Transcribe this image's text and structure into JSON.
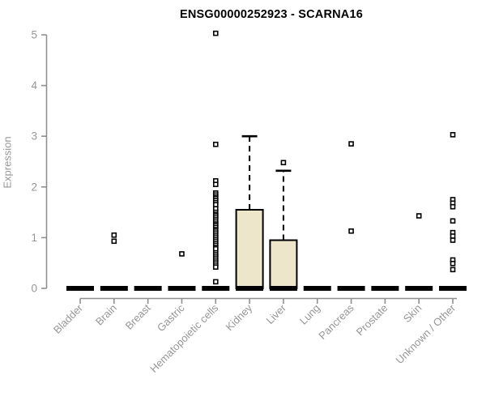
{
  "page": {
    "background": "#ffffff"
  },
  "chart_data": {
    "type": "boxplot",
    "title": "ENSG00000252923 - SCARNA16",
    "xlabel": "",
    "ylabel": "Expression",
    "ylim": [
      0,
      5
    ],
    "yticks": [
      0,
      1,
      2,
      3,
      4,
      5
    ],
    "grid": false,
    "legend": false,
    "categories": [
      "Bladder",
      "Brain",
      "Breast",
      "Gastric",
      "Hematopoietic cells",
      "Kidney",
      "Liver",
      "Lung",
      "Pancreas",
      "Prostate",
      "Skin",
      "Unknown / Other"
    ],
    "series": [
      {
        "category": "Bladder",
        "low": 0,
        "q1": 0,
        "median": 0,
        "q3": 0,
        "high": 0,
        "outliers": []
      },
      {
        "category": "Brain",
        "low": 0,
        "q1": 0,
        "median": 0,
        "q3": 0,
        "high": 0,
        "outliers": [
          1.05,
          0.93
        ]
      },
      {
        "category": "Breast",
        "low": 0,
        "q1": 0,
        "median": 0,
        "q3": 0,
        "high": 0,
        "outliers": []
      },
      {
        "category": "Gastric",
        "low": 0,
        "q1": 0,
        "median": 0,
        "q3": 0,
        "high": 0,
        "outliers": [
          0.68
        ]
      },
      {
        "category": "Hematopoietic cells",
        "low": 0,
        "q1": 0,
        "median": 0,
        "q3": 0,
        "high": 0,
        "outliers": [
          5.03,
          2.84,
          2.12,
          2.05,
          1.88,
          1.84,
          1.8,
          1.77,
          1.73,
          1.69,
          1.65,
          1.57,
          1.5,
          1.46,
          1.43,
          1.39,
          1.35,
          1.31,
          1.27,
          1.24,
          1.2,
          1.16,
          1.13,
          1.09,
          1.05,
          1.01,
          0.97,
          0.93,
          0.89,
          0.85,
          0.81,
          0.78,
          0.7,
          0.66,
          0.62,
          0.58,
          0.54,
          0.5,
          0.46,
          0.42,
          0.13
        ]
      },
      {
        "category": "Kidney",
        "low": 0,
        "q1": 0,
        "median": 0,
        "q3": 1.55,
        "high": 3.0,
        "outliers": []
      },
      {
        "category": "Liver",
        "low": 0,
        "q1": 0,
        "median": 0,
        "q3": 0.95,
        "high": 2.32,
        "outliers": [
          2.48
        ]
      },
      {
        "category": "Lung",
        "low": 0,
        "q1": 0,
        "median": 0,
        "q3": 0,
        "high": 0,
        "outliers": []
      },
      {
        "category": "Pancreas",
        "low": 0,
        "q1": 0,
        "median": 0,
        "q3": 0,
        "high": 0,
        "outliers": [
          2.85,
          1.13
        ]
      },
      {
        "category": "Prostate",
        "low": 0,
        "q1": 0,
        "median": 0,
        "q3": 0,
        "high": 0,
        "outliers": []
      },
      {
        "category": "Skin",
        "low": 0,
        "q1": 0,
        "median": 0,
        "q3": 0,
        "high": 0,
        "outliers": [
          1.43
        ]
      },
      {
        "category": "Unknown / Other",
        "low": 0,
        "q1": 0,
        "median": 0,
        "q3": 0,
        "high": 0,
        "outliers": [
          3.03,
          1.75,
          1.68,
          1.61,
          1.33,
          1.1,
          1.03,
          0.95,
          0.56,
          0.49,
          0.37
        ]
      }
    ],
    "colors": {
      "box_fill": "#EDE6CB",
      "box_border": "#000000",
      "median": "#000000",
      "whisker": "#000000",
      "outlier_stroke": "#000000",
      "outlier_fill": "#ffffff",
      "axis": "#8f8f8f",
      "tick_text": "#969696",
      "title": "#000000"
    }
  }
}
